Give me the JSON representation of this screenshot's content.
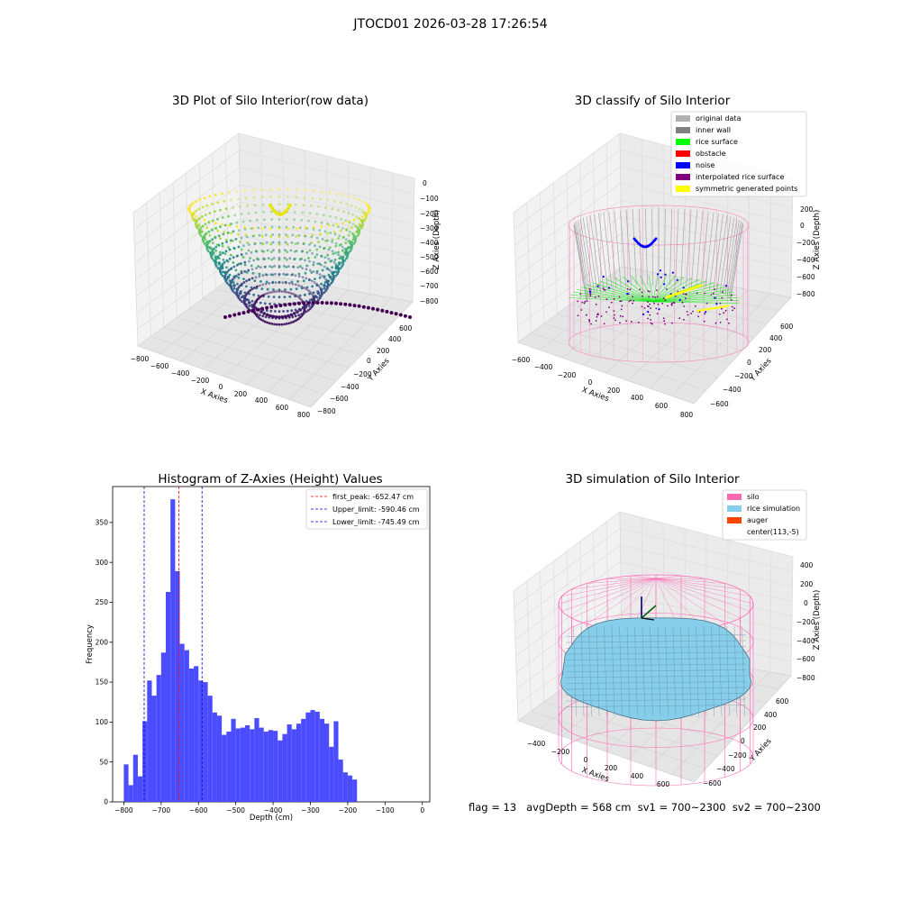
{
  "figure": {
    "suptitle": "JTOCD01 2026-03-28 17:26:54",
    "status_line": "flag = 13   avgDepth = 568 cm  sv1 = 700~2300  sv2 = 700~2300"
  },
  "colors": {
    "hist_bar": "#4c4cff",
    "first_peak": "#ff0000",
    "limits": "#0000cc",
    "silo_wire": "#ff69b4",
    "rice_sim": "#87ceeb",
    "auger": "#ff4500",
    "legend_original": "#b0b0b0",
    "legend_inner_wall": "#808080",
    "legend_rice_surface": "#00ff00",
    "legend_obstacle": "#ff0000",
    "legend_noise": "#0000ff",
    "legend_interp": "#800080",
    "legend_symmetric": "#ffff00"
  },
  "chart_data": [
    {
      "type": "scatter",
      "subtype": "3d-scatter",
      "title": "3D Plot of Silo Interior(row data)",
      "xlabel": "X Axies",
      "ylabel": "Y Axies",
      "zlabel": "Z Axies (Depth)",
      "xticks": [
        "−800",
        "−600",
        "−400",
        "−200",
        "0",
        "200",
        "400",
        "600",
        "800"
      ],
      "yticks": [
        "−800",
        "−600",
        "−400",
        "−200",
        "0",
        "200",
        "400",
        "600"
      ],
      "zticks": [
        "0",
        "−100",
        "−200",
        "−300",
        "−400",
        "−500",
        "−600",
        "−700",
        "−800"
      ],
      "xlim": [
        -800,
        800
      ],
      "ylim": [
        -800,
        600
      ],
      "zlim": [
        -850,
        0
      ],
      "colormap": "viridis"
    },
    {
      "type": "scatter",
      "subtype": "3d-scatter",
      "title": "3D classify of Silo Interior",
      "xlabel": "X Axies",
      "ylabel": "Y Axies",
      "zlabel": "Z Axies (Depth)",
      "xticks": [
        "−600",
        "−400",
        "−200",
        "0",
        "200",
        "400",
        "600",
        "800"
      ],
      "yticks": [
        "−600",
        "−400",
        "−200",
        "0",
        "200",
        "400",
        "600"
      ],
      "zticks": [
        "200",
        "0",
        "−200",
        "−400",
        "−600",
        "−800"
      ],
      "legend": {
        "position": "upper-right",
        "entries": [
          "original data",
          "inner wall",
          "rice surface",
          "obstacle",
          "noise",
          "interpolated rice surface",
          "symmetric generated points"
        ]
      }
    },
    {
      "type": "bar",
      "subtype": "histogram",
      "title": "Histogram of Z-Axies (Height) Values",
      "xlabel": "Depth (cm)",
      "ylabel": "Frequency",
      "xlim": [
        -830,
        20
      ],
      "ylim": [
        0,
        395
      ],
      "xticks": [
        -800,
        -700,
        -600,
        -500,
        -400,
        -300,
        -200,
        -100,
        0
      ],
      "xtick_labels": [
        "−800",
        "−700",
        "−600",
        "−500",
        "−400",
        "−300",
        "−200",
        "−100",
        "0"
      ],
      "yticks": [
        0,
        50,
        100,
        150,
        200,
        250,
        300,
        350
      ],
      "bin_width": 12.5,
      "bin_start": -800,
      "values": [
        47,
        21,
        59,
        32,
        101,
        152,
        133,
        159,
        187,
        263,
        379,
        289,
        198,
        190,
        167,
        170,
        152,
        150,
        133,
        112,
        108,
        84,
        88,
        104,
        92,
        93,
        96,
        91,
        105,
        93,
        88,
        90,
        89,
        77,
        85,
        97,
        91,
        98,
        104,
        112,
        115,
        113,
        104,
        98,
        69,
        101,
        53,
        37,
        33,
        28
      ],
      "vlines": [
        {
          "x": -652.47,
          "label": "first_peak: -652.47 cm",
          "color": "#ff0000"
        },
        {
          "x": -590.46,
          "label": "Upper_limit: -590.46 cm",
          "color": "#0000cc"
        },
        {
          "x": -745.49,
          "label": "Lower_limit: -745.49 cm",
          "color": "#0000cc"
        }
      ],
      "legend": "upper-right"
    },
    {
      "type": "area",
      "subtype": "3d-surface",
      "title": "3D simulation of Silo Interior",
      "xlabel": "X Axies",
      "ylabel": "Y Axies",
      "zlabel": "Z Axies (Depth)",
      "xticks": [
        "−400",
        "−200",
        "0",
        "200",
        "400",
        "600"
      ],
      "yticks": [
        "−600",
        "−400",
        "−200",
        "0",
        "200",
        "400",
        "600"
      ],
      "zticks": [
        "400",
        "200",
        "0",
        "−200",
        "−400",
        "−600",
        "−800"
      ],
      "legend": {
        "position": "upper-right",
        "entries": [
          "silo",
          "rice simulation",
          "auger",
          "center(113,-5)"
        ]
      }
    }
  ]
}
